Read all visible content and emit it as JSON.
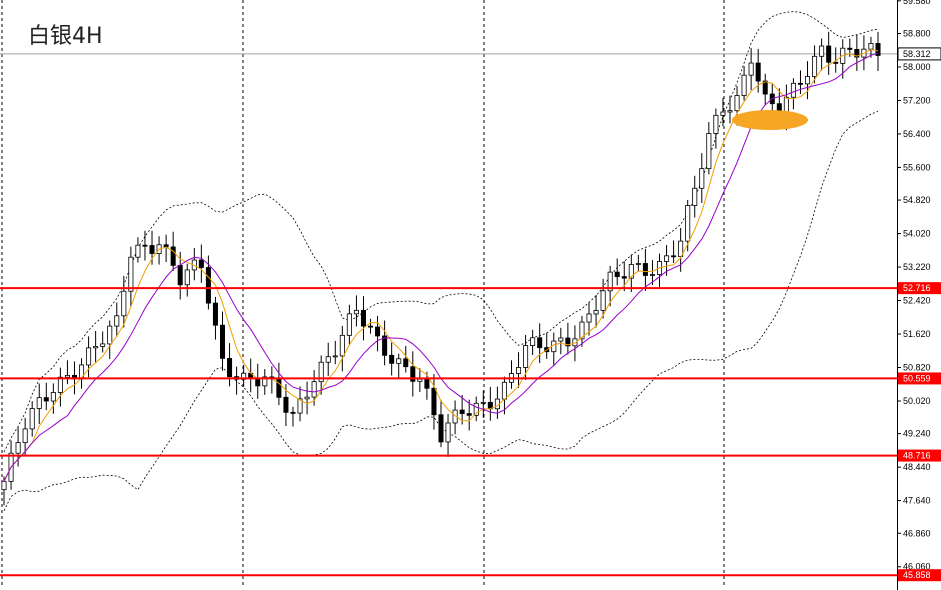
{
  "chart_data": {
    "type": "candlestick",
    "title": "白银4H",
    "current_price": "58.312",
    "y_range": [
      45.6,
      59.6
    ],
    "y_ticks": [
      "59.580",
      "58.800",
      "58.000",
      "57.200",
      "56.400",
      "55.600",
      "54.820",
      "54.020",
      "53.220",
      "52.420",
      "51.620",
      "50.820",
      "50.020",
      "49.240",
      "48.440",
      "47.640",
      "46.860",
      "46.060"
    ],
    "levels": [
      {
        "value": "52.716",
        "color": "#ff0000"
      },
      {
        "value": "50.559",
        "color": "#ff0000"
      },
      {
        "value": "48.716",
        "color": "#ff0000"
      },
      {
        "value": "45.858",
        "color": "#ff0000"
      }
    ],
    "candle_count": 125,
    "key_points": [
      [
        0,
        48.1
      ],
      [
        3,
        49.4
      ],
      [
        7,
        50.4
      ],
      [
        12,
        51.1
      ],
      [
        16,
        51.8
      ],
      [
        18,
        53.6
      ],
      [
        22,
        53.9
      ],
      [
        25,
        52.9
      ],
      [
        28,
        53.2
      ],
      [
        31,
        51.0
      ],
      [
        34,
        50.6
      ],
      [
        37,
        50.5
      ],
      [
        41,
        49.6
      ],
      [
        44,
        50.7
      ],
      [
        47,
        51.3
      ],
      [
        50,
        52.1
      ],
      [
        53,
        51.4
      ],
      [
        56,
        51.0
      ],
      [
        59,
        50.6
      ],
      [
        62,
        49.1
      ],
      [
        65,
        49.8
      ],
      [
        68,
        50.0
      ],
      [
        71,
        50.3
      ],
      [
        74,
        51.2
      ],
      [
        78,
        51.4
      ],
      [
        82,
        51.8
      ],
      [
        86,
        52.8
      ],
      [
        89,
        53.2
      ],
      [
        93,
        53.3
      ],
      [
        96,
        53.8
      ],
      [
        98,
        55.0
      ],
      [
        100,
        56.3
      ],
      [
        102,
        57.1
      ],
      [
        104,
        57.3
      ],
      [
        106,
        58.3
      ],
      [
        108,
        57.1
      ],
      [
        110,
        56.9
      ],
      [
        112,
        57.4
      ],
      [
        114,
        58.0
      ],
      [
        116,
        58.5
      ],
      [
        118,
        58.2
      ],
      [
        120,
        58.3
      ],
      [
        122,
        58.3
      ],
      [
        124,
        58.3
      ]
    ],
    "colors": {
      "level_line": "#ff0000",
      "ma_fast": "#f0a000",
      "ma_slow": "#9900cc",
      "bollinger": "#000000",
      "highlight": "#f5a623",
      "bull": "#ffffff",
      "bear": "#000000"
    }
  }
}
